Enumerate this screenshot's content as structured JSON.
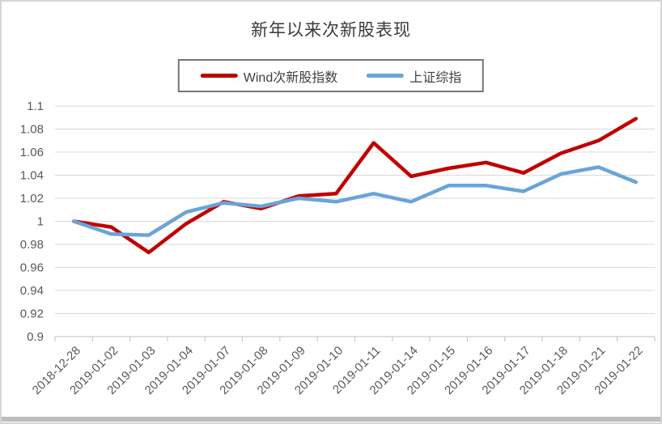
{
  "chart_data": {
    "type": "line",
    "title": "新年以来次新股表现",
    "categories": [
      "2018-12-28",
      "2019-01-02",
      "2019-01-03",
      "2019-01-04",
      "2019-01-07",
      "2019-01-08",
      "2019-01-09",
      "2019-01-10",
      "2019-01-11",
      "2019-01-14",
      "2019-01-15",
      "2019-01-16",
      "2019-01-17",
      "2019-01-18",
      "2019-01-21",
      "2019-01-22"
    ],
    "series": [
      {
        "name": "Wind次新股指数",
        "color": "#c00000",
        "values": [
          1.0,
          0.995,
          0.973,
          0.998,
          1.017,
          1.011,
          1.022,
          1.024,
          1.068,
          1.039,
          1.046,
          1.051,
          1.042,
          1.059,
          1.07,
          1.089
        ]
      },
      {
        "name": "上证综指",
        "color": "#6aa4d8",
        "values": [
          1.0,
          0.989,
          0.988,
          1.008,
          1.016,
          1.013,
          1.02,
          1.017,
          1.024,
          1.017,
          1.031,
          1.031,
          1.026,
          1.041,
          1.047,
          1.034
        ]
      }
    ],
    "ylim": [
      0.9,
      1.1
    ],
    "ytick_step": 0.02,
    "ytick_labels": [
      "1.1",
      "1.08",
      "1.06",
      "1.04",
      "1.02",
      "1",
      "0.98",
      "0.96",
      "0.94",
      "0.92",
      "0.9"
    ],
    "grid": true,
    "legend_position": "top-center",
    "x_label_rotation_deg": 45,
    "colors": {
      "gridline": "#d9d9d9",
      "axis_line": "#bfbfbf",
      "tick_label": "#595959",
      "title_text": "#3a3a3a"
    }
  }
}
